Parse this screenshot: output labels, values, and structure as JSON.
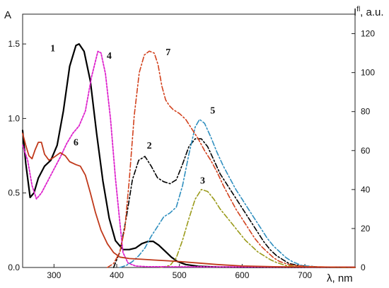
{
  "chart_data": {
    "type": "line",
    "x_label": "λ, nm",
    "y_left_label": "A",
    "y_right_label_main": "I",
    "y_right_label_sup": "fl",
    "y_right_label_rest": ", a.u.",
    "xlim": [
      250,
      780
    ],
    "ylim_left": [
      0,
      1.7
    ],
    "ylim_right": [
      0,
      130
    ],
    "x_ticks": [
      {
        "value": 300,
        "label": "300"
      },
      {
        "value": 400,
        "label": "400"
      },
      {
        "value": 500,
        "label": "500"
      },
      {
        "value": 600,
        "label": "600"
      },
      {
        "value": 700,
        "label": "700"
      }
    ],
    "y_left_ticks": [
      {
        "value": 0,
        "label": "0.0"
      },
      {
        "value": 0.5,
        "label": "0.5"
      },
      {
        "value": 1.0,
        "label": "1.0"
      },
      {
        "value": 1.5,
        "label": "1.5"
      }
    ],
    "y_right_ticks": [
      {
        "value": 0,
        "label": "0"
      },
      {
        "value": 20,
        "label": "20"
      },
      {
        "value": 40,
        "label": "40"
      },
      {
        "value": 60,
        "label": "60"
      },
      {
        "value": 80,
        "label": "80"
      },
      {
        "value": 100,
        "label": "100"
      },
      {
        "value": 120,
        "label": "120"
      }
    ],
    "series": [
      {
        "label": "1",
        "axis": "left",
        "color": "#000000",
        "dash": "solid",
        "width": 2.2,
        "label_at": [
          298,
          1.45
        ],
        "points": [
          [
            250,
            0.92
          ],
          [
            255,
            0.7
          ],
          [
            262,
            0.47
          ],
          [
            268,
            0.5
          ],
          [
            275,
            0.6
          ],
          [
            285,
            0.68
          ],
          [
            295,
            0.72
          ],
          [
            305,
            0.82
          ],
          [
            315,
            1.05
          ],
          [
            325,
            1.35
          ],
          [
            335,
            1.49
          ],
          [
            340,
            1.5
          ],
          [
            348,
            1.45
          ],
          [
            358,
            1.25
          ],
          [
            368,
            0.9
          ],
          [
            378,
            0.58
          ],
          [
            388,
            0.33
          ],
          [
            398,
            0.18
          ],
          [
            410,
            0.12
          ],
          [
            420,
            0.12
          ],
          [
            430,
            0.13
          ],
          [
            440,
            0.16
          ],
          [
            450,
            0.175
          ],
          [
            458,
            0.175
          ],
          [
            467,
            0.15
          ],
          [
            477,
            0.11
          ],
          [
            487,
            0.07
          ],
          [
            497,
            0.04
          ],
          [
            510,
            0.02
          ],
          [
            530,
            0.008
          ],
          [
            560,
            0.003
          ],
          [
            600,
            0.002
          ],
          [
            780,
            0.001
          ]
        ]
      },
      {
        "label": "2",
        "axis": "right",
        "color": "#000000",
        "dash": "7,3,2,3",
        "width": 1.6,
        "label_at": [
          452,
          61
        ],
        "points": [
          [
            395,
            0
          ],
          [
            405,
            8
          ],
          [
            415,
            25
          ],
          [
            425,
            45
          ],
          [
            435,
            55
          ],
          [
            445,
            57
          ],
          [
            455,
            52
          ],
          [
            465,
            46
          ],
          [
            475,
            44
          ],
          [
            485,
            43
          ],
          [
            495,
            45
          ],
          [
            505,
            53
          ],
          [
            515,
            62
          ],
          [
            525,
            66
          ],
          [
            535,
            66
          ],
          [
            545,
            62
          ],
          [
            555,
            55
          ],
          [
            565,
            48
          ],
          [
            575,
            43
          ],
          [
            585,
            38
          ],
          [
            595,
            33
          ],
          [
            605,
            28
          ],
          [
            615,
            23
          ],
          [
            625,
            18
          ],
          [
            635,
            13
          ],
          [
            645,
            9
          ],
          [
            655,
            6
          ],
          [
            665,
            4
          ],
          [
            675,
            2
          ],
          [
            690,
            1
          ],
          [
            720,
            0.3
          ],
          [
            780,
            0
          ]
        ]
      },
      {
        "label": "3",
        "axis": "right",
        "color": "#9a9a1a",
        "dash": "7,3,2,3",
        "width": 1.6,
        "label_at": [
          537,
          43
        ],
        "points": [
          [
            470,
            0
          ],
          [
            485,
            1
          ],
          [
            495,
            5
          ],
          [
            505,
            14
          ],
          [
            515,
            25
          ],
          [
            525,
            35
          ],
          [
            535,
            40
          ],
          [
            545,
            39
          ],
          [
            555,
            35
          ],
          [
            565,
            30
          ],
          [
            575,
            26
          ],
          [
            585,
            22
          ],
          [
            595,
            18
          ],
          [
            605,
            14
          ],
          [
            615,
            11
          ],
          [
            625,
            8
          ],
          [
            635,
            6
          ],
          [
            645,
            4
          ],
          [
            655,
            2.5
          ],
          [
            670,
            1
          ],
          [
            700,
            0.2
          ],
          [
            780,
            0
          ]
        ]
      },
      {
        "label": "4",
        "axis": "left",
        "color": "#dd22cc",
        "dash": "2.5,2",
        "width": 1.8,
        "label_at": [
          388,
          1.4
        ],
        "points": [
          [
            250,
            0.82
          ],
          [
            258,
            0.72
          ],
          [
            265,
            0.55
          ],
          [
            272,
            0.46
          ],
          [
            280,
            0.5
          ],
          [
            290,
            0.58
          ],
          [
            300,
            0.66
          ],
          [
            310,
            0.74
          ],
          [
            320,
            0.83
          ],
          [
            330,
            0.9
          ],
          [
            340,
            0.95
          ],
          [
            350,
            1.05
          ],
          [
            360,
            1.28
          ],
          [
            370,
            1.45
          ],
          [
            375,
            1.44
          ],
          [
            382,
            1.3
          ],
          [
            390,
            1.0
          ],
          [
            398,
            0.6
          ],
          [
            405,
            0.3
          ],
          [
            410,
            0.1
          ],
          [
            418,
            0.03
          ],
          [
            430,
            0.01
          ],
          [
            450,
            0.005
          ],
          [
            780,
            0.002
          ]
        ]
      },
      {
        "label": "5",
        "axis": "right",
        "color": "#2f8fbf",
        "dash": "7,3,2,3",
        "width": 1.6,
        "label_at": [
          553,
          79
        ],
        "points": [
          [
            405,
            0
          ],
          [
            415,
            1
          ],
          [
            425,
            3
          ],
          [
            435,
            6
          ],
          [
            445,
            10
          ],
          [
            455,
            16
          ],
          [
            465,
            21
          ],
          [
            475,
            26
          ],
          [
            485,
            28
          ],
          [
            495,
            31
          ],
          [
            505,
            42
          ],
          [
            515,
            58
          ],
          [
            525,
            72
          ],
          [
            532,
            76
          ],
          [
            540,
            74
          ],
          [
            550,
            67
          ],
          [
            560,
            59
          ],
          [
            570,
            52
          ],
          [
            580,
            46
          ],
          [
            590,
            40
          ],
          [
            600,
            35
          ],
          [
            610,
            30
          ],
          [
            620,
            25
          ],
          [
            630,
            20
          ],
          [
            640,
            15
          ],
          [
            650,
            11
          ],
          [
            660,
            8
          ],
          [
            670,
            5
          ],
          [
            680,
            3
          ],
          [
            695,
            1
          ],
          [
            720,
            0.3
          ],
          [
            780,
            0
          ]
        ]
      },
      {
        "label": "6",
        "axis": "left",
        "color": "#c0391b",
        "dash": "solid",
        "width": 1.8,
        "label_at": [
          335,
          0.82
        ],
        "points": [
          [
            250,
            0.9
          ],
          [
            255,
            0.82
          ],
          [
            260,
            0.75
          ],
          [
            265,
            0.73
          ],
          [
            270,
            0.79
          ],
          [
            275,
            0.84
          ],
          [
            280,
            0.84
          ],
          [
            285,
            0.76
          ],
          [
            292,
            0.72
          ],
          [
            300,
            0.74
          ],
          [
            310,
            0.77
          ],
          [
            318,
            0.75
          ],
          [
            325,
            0.71
          ],
          [
            335,
            0.69
          ],
          [
            342,
            0.68
          ],
          [
            350,
            0.62
          ],
          [
            358,
            0.5
          ],
          [
            366,
            0.37
          ],
          [
            375,
            0.25
          ],
          [
            385,
            0.16
          ],
          [
            395,
            0.1
          ],
          [
            405,
            0.07
          ],
          [
            420,
            0.06
          ],
          [
            440,
            0.055
          ],
          [
            460,
            0.05
          ],
          [
            480,
            0.045
          ],
          [
            500,
            0.04
          ],
          [
            530,
            0.03
          ],
          [
            560,
            0.02
          ],
          [
            600,
            0.01
          ],
          [
            650,
            0.005
          ],
          [
            780,
            0.002
          ]
        ]
      },
      {
        "label": "7",
        "axis": "right",
        "color": "#d2421e",
        "dash": "7,3,2,3",
        "width": 1.6,
        "label_at": [
          482,
          109
        ],
        "points": [
          [
            385,
            0
          ],
          [
            395,
            2
          ],
          [
            405,
            8
          ],
          [
            413,
            20
          ],
          [
            420,
            45
          ],
          [
            428,
            78
          ],
          [
            436,
            100
          ],
          [
            444,
            109
          ],
          [
            452,
            111
          ],
          [
            460,
            110
          ],
          [
            466,
            104
          ],
          [
            472,
            93
          ],
          [
            478,
            86
          ],
          [
            484,
            83
          ],
          [
            490,
            81
          ],
          [
            500,
            79
          ],
          [
            510,
            76
          ],
          [
            520,
            71
          ],
          [
            530,
            66
          ],
          [
            540,
            60
          ],
          [
            550,
            55
          ],
          [
            560,
            49
          ],
          [
            570,
            42
          ],
          [
            580,
            36
          ],
          [
            590,
            30
          ],
          [
            600,
            25
          ],
          [
            610,
            20
          ],
          [
            620,
            15
          ],
          [
            630,
            11
          ],
          [
            640,
            8
          ],
          [
            650,
            5
          ],
          [
            660,
            3
          ],
          [
            675,
            1.5
          ],
          [
            700,
            0.5
          ],
          [
            780,
            0
          ]
        ]
      }
    ]
  }
}
